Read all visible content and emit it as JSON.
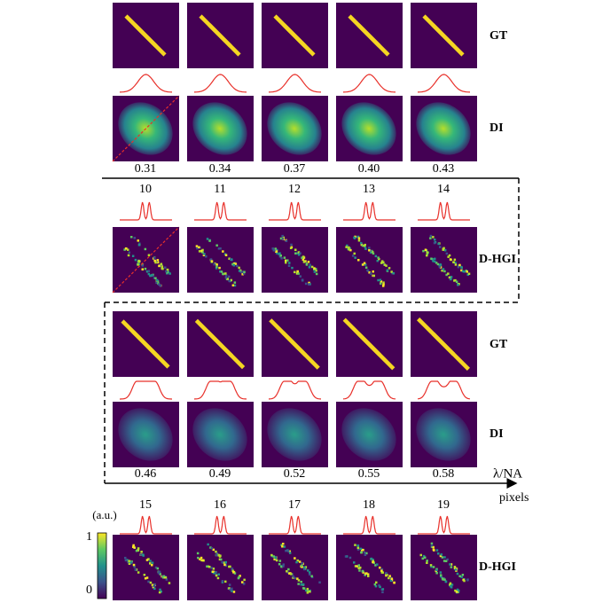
{
  "panels": [
    {
      "gt_label": "GT",
      "di_label": "DI",
      "lambda_na": [
        "0.31",
        "0.34",
        "0.37",
        "0.40",
        "0.43"
      ],
      "pixels": [
        "10",
        "11",
        "12",
        "13",
        "14"
      ],
      "dhgi_label": "D-HGI"
    },
    {
      "gt_label": "GT",
      "di_label": "DI",
      "lambda_na": [
        "0.46",
        "0.49",
        "0.52",
        "0.55",
        "0.58"
      ],
      "pixels": [
        "15",
        "16",
        "17",
        "18",
        "19"
      ],
      "dhgi_label": "D-HGI"
    }
  ],
  "axis": {
    "lambda_label": "λ/NA",
    "pixels_label": "pixels"
  },
  "colorbar": {
    "unit": "(a.u.)",
    "max": "1",
    "min": "0"
  }
}
